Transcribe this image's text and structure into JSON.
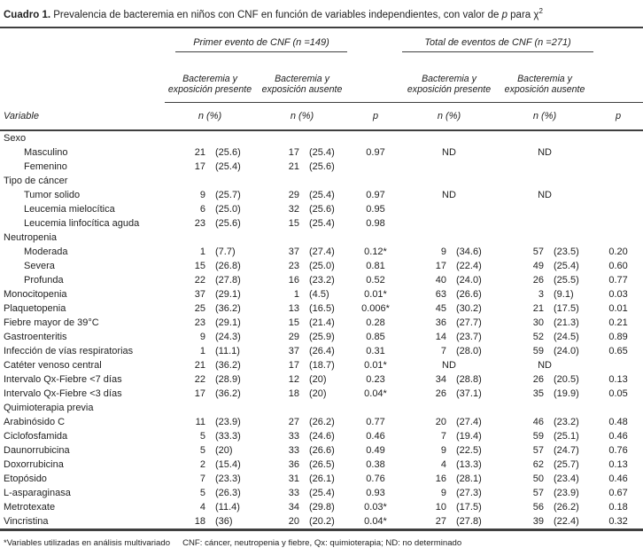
{
  "title": {
    "label": "Cuadro 1.",
    "text": " Prevalencia de bacteremia en niños con CNF en función de variables independientes, con valor de ",
    "p_var": "p",
    "text2": " para ",
    "chi": "χ",
    "sup": "2"
  },
  "table": {
    "group1": "Primer evento de CNF (n =149)",
    "group2": "Total de eventos de CNF (n =271)",
    "sub_present": "Bacteremia y exposición presente",
    "sub_absent": "Bacteremia y exposición ausente",
    "col_variable": "Variable",
    "col_n": "n (%)",
    "col_p": "p",
    "rows": [
      {
        "label": "Sexo",
        "section": true
      },
      {
        "label": "Masculino",
        "indent": true,
        "cells": [
          "21",
          "(25.6)",
          "17",
          "(25.4)",
          "0.97",
          "ND",
          null,
          "ND",
          null,
          ""
        ]
      },
      {
        "label": "Femenino",
        "indent": true,
        "cells": [
          "17",
          "(25.4)",
          "21",
          "(25.6)",
          "",
          "",
          "",
          "",
          "",
          ""
        ]
      },
      {
        "label": "Tipo de cáncer",
        "section": true
      },
      {
        "label": "Tumor solido",
        "indent": true,
        "cells": [
          "9",
          "(25.7)",
          "29",
          "(25.4)",
          "0.97",
          "ND",
          null,
          "ND",
          null,
          ""
        ]
      },
      {
        "label": "Leucemia mielocítica",
        "indent": true,
        "cells": [
          "6",
          "(25.0)",
          "32",
          "(25.6)",
          "0.95",
          "",
          "",
          "",
          "",
          ""
        ]
      },
      {
        "label": "Leucemia linfocítica aguda",
        "indent": true,
        "cells": [
          "23",
          "(25.6)",
          "15",
          "(25.4)",
          "0.98",
          "",
          "",
          "",
          "",
          ""
        ]
      },
      {
        "label": "Neutropenia",
        "section": true
      },
      {
        "label": "Moderada",
        "indent": true,
        "cells": [
          "1",
          "(7.7)",
          "37",
          "(27.4)",
          "0.12*",
          "9",
          "(34.6)",
          "57",
          "(23.5)",
          "0.20"
        ]
      },
      {
        "label": "Severa",
        "indent": true,
        "cells": [
          "15",
          "(26.8)",
          "23",
          "(25.0)",
          "0.81",
          "17",
          "(22.4)",
          "49",
          "(25.4)",
          "0.60"
        ]
      },
      {
        "label": "Profunda",
        "indent": true,
        "cells": [
          "22",
          "(27.8)",
          "16",
          "(23.2)",
          "0.52",
          "40",
          "(24.0)",
          "26",
          "(25.5)",
          "0.77"
        ]
      },
      {
        "label": "Monocitopenia",
        "cells": [
          "37",
          "(29.1)",
          "1",
          "(4.5)",
          "0.01*",
          "63",
          "(26.6)",
          "3",
          "(9.1)",
          "0.03"
        ]
      },
      {
        "label": "Plaquetopenia",
        "cells": [
          "25",
          "(36.2)",
          "13",
          "(16.5)",
          "0.006*",
          "45",
          "(30.2)",
          "21",
          "(17.5)",
          "0.01"
        ]
      },
      {
        "label": "Fiebre mayor de 39°C",
        "cells": [
          "23",
          "(29.1)",
          "15",
          "(21.4)",
          "0.28",
          "36",
          "(27.7)",
          "30",
          "(21.3)",
          "0.21"
        ]
      },
      {
        "label": "Gastroenteritis",
        "cells": [
          "9",
          "(24.3)",
          "29",
          "(25.9)",
          "0.85",
          "14",
          "(23.7)",
          "52",
          "(24.5)",
          "0.89"
        ]
      },
      {
        "label": "Infección de vías respiratorias",
        "cells": [
          "1",
          "(11.1)",
          "37",
          "(26.4)",
          "0.31",
          "7",
          "(28.0)",
          "59",
          "(24.0)",
          "0.65"
        ]
      },
      {
        "label": "Catéter venoso central",
        "cells": [
          "21",
          "(36.2)",
          "17",
          "(18.7)",
          "0.01*",
          "ND",
          null,
          "ND",
          null,
          ""
        ]
      },
      {
        "label": "Intervalo Qx-Fiebre <7 días",
        "cells": [
          "22",
          "(28.9)",
          "12",
          "(20)",
          "0.23",
          "34",
          "(28.8)",
          "26",
          "(20.5)",
          "0.13"
        ]
      },
      {
        "label": "Intervalo Qx-Fiebre <3 días",
        "cells": [
          "17",
          "(36.2)",
          "18",
          "(20)",
          "0.04*",
          "26",
          "(37.1)",
          "35",
          "(19.9)",
          "0.05"
        ]
      },
      {
        "label": "Quimioterapia previa",
        "section": true
      },
      {
        "label": "Arabinósido C",
        "cells": [
          "11",
          "(23.9)",
          "27",
          "(26.2)",
          "0.77",
          "20",
          "(27.4)",
          "46",
          "(23.2)",
          "0.48"
        ]
      },
      {
        "label": "Ciclofosfamida",
        "cells": [
          "5",
          "(33.3)",
          "33",
          "(24.6)",
          "0.46",
          "7",
          "(19.4)",
          "59",
          "(25.1)",
          "0.46"
        ]
      },
      {
        "label": "Daunorrubicina",
        "cells": [
          "5",
          "(20)",
          "33",
          "(26.6)",
          "0.49",
          "9",
          "(22.5)",
          "57",
          "(24.7)",
          "0.76"
        ]
      },
      {
        "label": "Doxorrubicina",
        "cells": [
          "2",
          "(15.4)",
          "36",
          "(26.5)",
          "0.38",
          "4",
          "(13.3)",
          "62",
          "(25.7)",
          "0.13"
        ]
      },
      {
        "label": "Etopósido",
        "cells": [
          "7",
          "(23.3)",
          "31",
          "(26.1)",
          "0.76",
          "16",
          "(28.1)",
          "50",
          "(23.4)",
          "0.46"
        ]
      },
      {
        "label": "L-asparaginasa",
        "cells": [
          "5",
          "(26.3)",
          "33",
          "(25.4)",
          "0.93",
          "9",
          "(27.3)",
          "57",
          "(23.9)",
          "0.67"
        ]
      },
      {
        "label": "Metrotexate",
        "cells": [
          "4",
          "(11.4)",
          "34",
          "(29.8)",
          "0.03*",
          "10",
          "(17.5)",
          "56",
          "(26.2)",
          "0.18"
        ]
      },
      {
        "label": "Vincristina",
        "cells": [
          "18",
          "(36)",
          "20",
          "(20.2)",
          "0.04*",
          "27",
          "(27.8)",
          "39",
          "(22.4)",
          "0.32"
        ]
      }
    ]
  },
  "footer": {
    "note1": "*Variables utilizadas en análisis multivariado",
    "note2": "CNF: cáncer, neutropenia y fiebre, Qx: quimioterapia; ND: no determinado"
  }
}
